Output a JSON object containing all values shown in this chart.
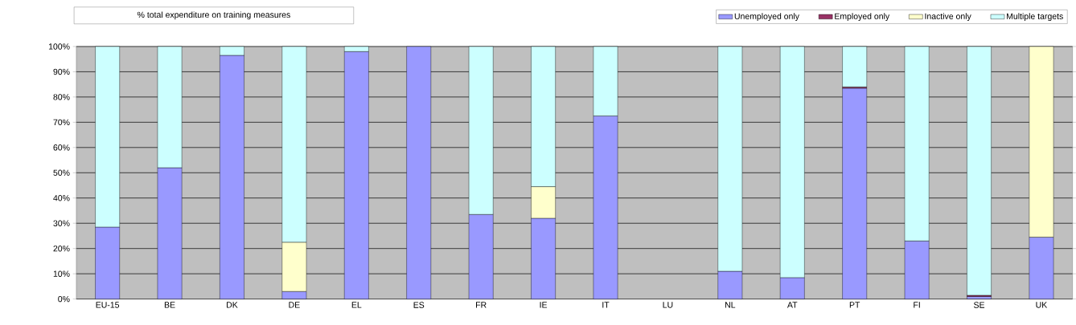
{
  "chart_data": {
    "type": "bar",
    "stacked": true,
    "title": "% total expenditure on training measures",
    "categories": [
      "EU-15",
      "BE",
      "DK",
      "DE",
      "EL",
      "ES",
      "FR",
      "IE",
      "IT",
      "LU",
      "NL",
      "AT",
      "PT",
      "FI",
      "SE",
      "UK"
    ],
    "series": [
      {
        "name": "Unemployed only",
        "color": "#9999ff",
        "values": [
          28.5,
          52,
          96.5,
          3,
          98,
          100,
          33.5,
          32,
          72.5,
          null,
          11,
          8.5,
          83.5,
          23,
          1,
          24.5
        ]
      },
      {
        "name": "Employed only",
        "color": "#993366",
        "values": [
          null,
          null,
          null,
          null,
          null,
          null,
          null,
          null,
          null,
          null,
          null,
          null,
          0.5,
          null,
          0.5,
          null
        ]
      },
      {
        "name": "Inactive only",
        "color": "#ffffcc",
        "values": [
          null,
          null,
          null,
          19.5,
          null,
          null,
          null,
          12.5,
          null,
          null,
          null,
          null,
          null,
          null,
          null,
          75.5
        ]
      },
      {
        "name": "Multiple targets",
        "color": "#ccffff",
        "values": [
          71.5,
          48,
          3.5,
          77.5,
          2,
          null,
          66.5,
          55.5,
          27.5,
          null,
          89,
          91.5,
          16,
          77,
          98.5,
          null
        ]
      }
    ],
    "ylim": [
      0,
      100
    ],
    "yticks": [
      {
        "value": 0,
        "label": "0%"
      },
      {
        "value": 10,
        "label": "10%"
      },
      {
        "value": 20,
        "label": "20%"
      },
      {
        "value": 30,
        "label": "30%"
      },
      {
        "value": 40,
        "label": "40%"
      },
      {
        "value": 50,
        "label": "50%"
      },
      {
        "value": 60,
        "label": "60%"
      },
      {
        "value": 70,
        "label": "70%"
      },
      {
        "value": 80,
        "label": "80%"
      },
      {
        "value": 90,
        "label": "90%"
      },
      {
        "value": 100,
        "label": "100%"
      }
    ],
    "grid": "y",
    "legend": "top right"
  }
}
